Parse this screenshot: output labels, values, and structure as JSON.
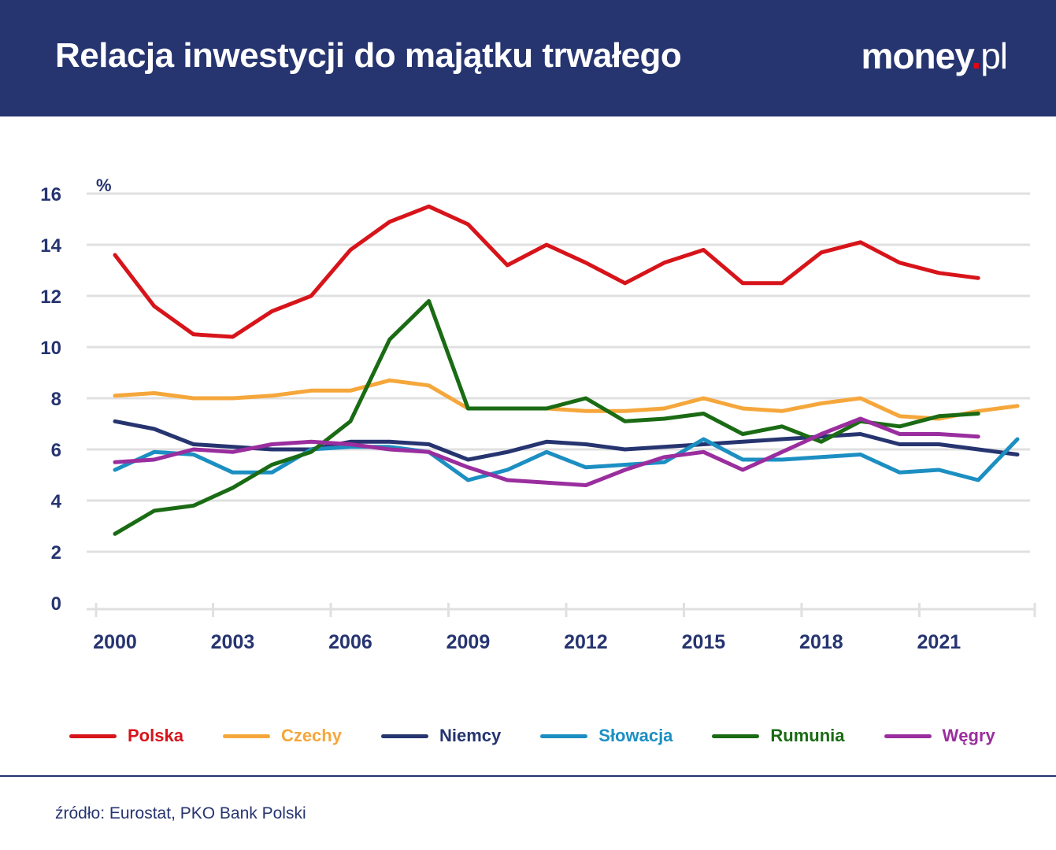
{
  "header": {
    "title": "Relacja inwestycji do majątku trwałego",
    "brand_main": "money",
    "brand_dot": ".",
    "brand_tld": "pl"
  },
  "source": "źródło: Eurostat, PKO Bank Polski",
  "colors": {
    "header_bg": "#263470",
    "axis_text": "#263470",
    "grid": "#e0e0e0"
  },
  "chart_data": {
    "type": "line",
    "ylabel": "%",
    "ylim": [
      0,
      16
    ],
    "yticks": [
      0,
      2,
      4,
      6,
      8,
      10,
      12,
      14,
      16
    ],
    "xlim": [
      2000,
      2023
    ],
    "xtick_labels": [
      "2000",
      "2003",
      "2006",
      "2009",
      "2012",
      "2015",
      "2018",
      "2021"
    ],
    "grid": true,
    "legend_position": "bottom",
    "x": [
      2000,
      2001,
      2002,
      2003,
      2004,
      2005,
      2006,
      2007,
      2008,
      2009,
      2010,
      2011,
      2012,
      2013,
      2014,
      2015,
      2016,
      2017,
      2018,
      2019,
      2020,
      2021,
      2022,
      2023
    ],
    "series": [
      {
        "name": "Polska",
        "color": "#d7141a",
        "values": [
          13.6,
          11.6,
          10.5,
          10.4,
          11.4,
          12.0,
          13.8,
          14.9,
          15.5,
          14.8,
          13.2,
          14.0,
          13.3,
          12.5,
          13.3,
          13.8,
          12.5,
          12.5,
          13.7,
          14.1,
          13.3,
          12.9,
          12.7,
          null
        ]
      },
      {
        "name": "Czechy",
        "color": "#f5a73b",
        "values": [
          8.1,
          8.2,
          8.0,
          8.0,
          8.1,
          8.3,
          8.3,
          8.7,
          8.5,
          7.6,
          7.6,
          7.6,
          7.5,
          7.5,
          7.6,
          8.0,
          7.6,
          7.5,
          7.8,
          8.0,
          7.3,
          7.2,
          7.5,
          7.7
        ]
      },
      {
        "name": "Niemcy",
        "color": "#263470",
        "values": [
          7.1,
          6.8,
          6.2,
          6.1,
          6.0,
          6.0,
          6.3,
          6.3,
          6.2,
          5.6,
          5.9,
          6.3,
          6.2,
          6.0,
          6.1,
          6.2,
          6.3,
          6.4,
          6.5,
          6.6,
          6.2,
          6.2,
          6.0,
          5.8
        ]
      },
      {
        "name": "Słowacja",
        "color": "#1c8fc2",
        "values": [
          5.2,
          5.9,
          5.8,
          5.1,
          5.1,
          6.0,
          6.1,
          6.1,
          5.9,
          4.8,
          5.2,
          5.9,
          5.3,
          5.4,
          5.5,
          6.4,
          5.6,
          5.6,
          5.7,
          5.8,
          5.1,
          5.2,
          4.8,
          6.4
        ]
      },
      {
        "name": "Rumunia",
        "color": "#1a6b14",
        "values": [
          2.7,
          3.6,
          3.8,
          4.5,
          5.4,
          5.9,
          7.1,
          10.3,
          11.8,
          7.6,
          7.6,
          7.6,
          8.0,
          7.1,
          7.2,
          7.4,
          6.6,
          6.9,
          6.3,
          7.1,
          6.9,
          7.3,
          7.4,
          null
        ]
      },
      {
        "name": "Węgry",
        "color": "#9a2e9e",
        "values": [
          5.5,
          5.6,
          6.0,
          5.9,
          6.2,
          6.3,
          6.2,
          6.0,
          5.9,
          5.3,
          4.8,
          4.7,
          4.6,
          5.2,
          5.7,
          5.9,
          5.2,
          5.9,
          6.6,
          7.2,
          6.6,
          6.6,
          6.5,
          null
        ]
      }
    ]
  }
}
